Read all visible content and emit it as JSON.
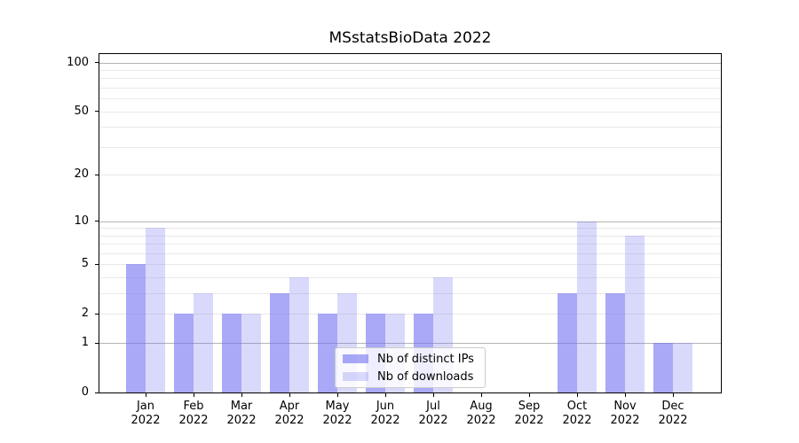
{
  "chart_data": {
    "type": "bar",
    "title": "MSstatsBioData 2022",
    "y_scale": "log10(1+x)",
    "ylim": [
      0,
      112
    ],
    "y_ticks": [
      0,
      1,
      2,
      5,
      10,
      20,
      50,
      100
    ],
    "grid": {
      "major": [
        1,
        10,
        100
      ],
      "minor": [
        2,
        3,
        4,
        5,
        6,
        7,
        8,
        9,
        20,
        30,
        40,
        50,
        60,
        70,
        80,
        90
      ],
      "major_color": "#b4b4b4",
      "minor_color": "#e9e9e9"
    },
    "categories": [
      {
        "month": "Jan",
        "year": "2022"
      },
      {
        "month": "Feb",
        "year": "2022"
      },
      {
        "month": "Mar",
        "year": "2022"
      },
      {
        "month": "Apr",
        "year": "2022"
      },
      {
        "month": "May",
        "year": "2022"
      },
      {
        "month": "Jun",
        "year": "2022"
      },
      {
        "month": "Jul",
        "year": "2022"
      },
      {
        "month": "Aug",
        "year": "2022"
      },
      {
        "month": "Sep",
        "year": "2022"
      },
      {
        "month": "Oct",
        "year": "2022"
      },
      {
        "month": "Nov",
        "year": "2022"
      },
      {
        "month": "Dec",
        "year": "2022"
      }
    ],
    "series": [
      {
        "name": "Nb of distinct IPs",
        "color": "rgba(116,116,242,0.62)",
        "color_hex": "#a9a9f7",
        "values": [
          5,
          2,
          2,
          3,
          2,
          2,
          2,
          0,
          0,
          3,
          3,
          1
        ]
      },
      {
        "name": "Nb of downloads",
        "color": "rgba(116,116,242,0.27)",
        "color_hex": "#dbdbfa",
        "values": [
          9,
          3,
          2,
          4,
          3,
          2,
          4,
          0,
          0,
          10,
          8,
          1
        ]
      }
    ],
    "legend_position": "lower center"
  }
}
